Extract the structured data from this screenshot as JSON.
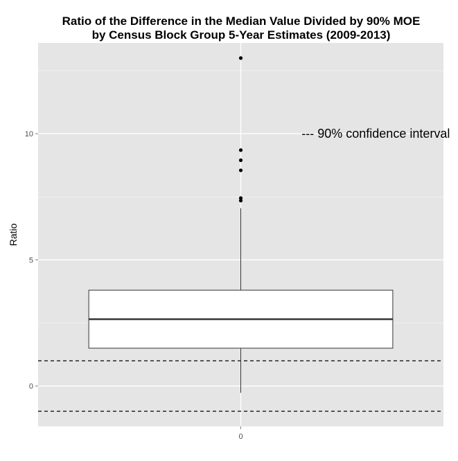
{
  "chart_data": {
    "type": "box",
    "title": "Ratio of the Difference in the Median Value Divided by 90% MOE by Census Block Group 5-Year Estimates (2009-2013)",
    "title_lines": [
      "Ratio of the Difference in the Median Value Divided by 90% MOE",
      "by Census Block Group 5-Year Estimates (2009-2013)"
    ],
    "xlabel": "",
    "ylabel": "Ratio",
    "x_ticks": [
      "0"
    ],
    "y_ticks": [
      0,
      5,
      10
    ],
    "ylim": [
      -1.6,
      13.6
    ],
    "grid": true,
    "box": {
      "x": "0",
      "whisker_low": -0.27,
      "q1": 1.5,
      "median": 2.65,
      "q3": 3.8,
      "whisker_high": 7.05,
      "outliers": [
        7.35,
        7.45,
        8.55,
        8.95,
        9.35,
        13.0
      ]
    },
    "reference_lines": [
      {
        "y": 1.0,
        "style": "dashed"
      },
      {
        "y": -1.0,
        "style": "dashed"
      }
    ],
    "annotation": {
      "text": "--- 90% confidence interval",
      "x_data": 0.18,
      "y_data": 10.0
    },
    "colors": {
      "panel": "#e5e5e5",
      "grid": "#ffffff",
      "box_fill": "#ffffff",
      "box_line": "#333333",
      "point": "#000000",
      "reference": "#000000"
    }
  }
}
